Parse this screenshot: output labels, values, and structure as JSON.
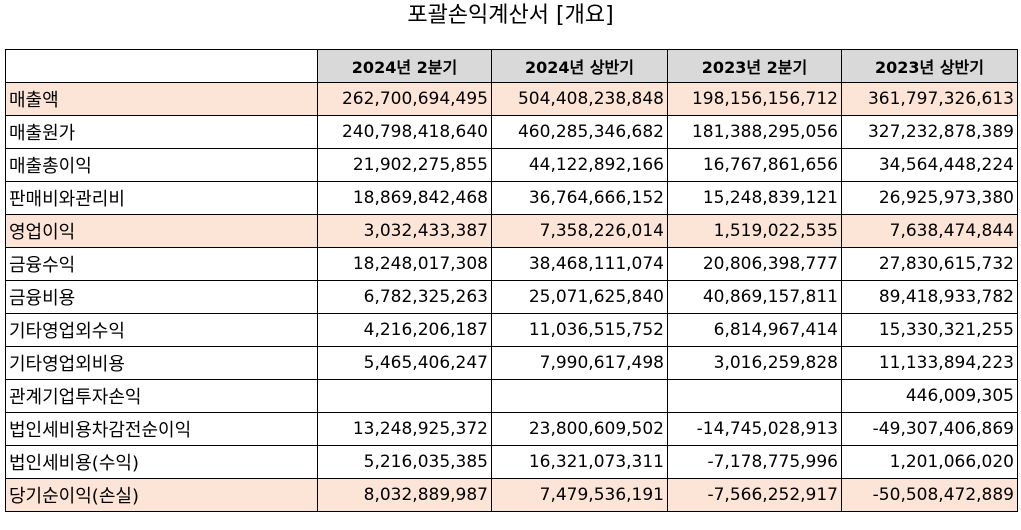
{
  "title": "포괄손익계산서 [개요]",
  "columns": [
    "2024년 2분기",
    "2024년 상반기",
    "2023년 2분기",
    "2023년 상반기"
  ],
  "colors": {
    "header_bg": "#d9d9d9",
    "highlight_bg": "#fce4d6"
  },
  "rows": [
    {
      "label": "매출액",
      "highlight": true,
      "values": [
        "262,700,694,495",
        "504,408,238,848",
        "198,156,156,712",
        "361,797,326,613"
      ]
    },
    {
      "label": "매출원가",
      "highlight": false,
      "values": [
        "240,798,418,640",
        "460,285,346,682",
        "181,388,295,056",
        "327,232,878,389"
      ]
    },
    {
      "label": "매출총이익",
      "highlight": false,
      "values": [
        "21,902,275,855",
        "44,122,892,166",
        "16,767,861,656",
        "34,564,448,224"
      ]
    },
    {
      "label": "판매비와관리비",
      "highlight": false,
      "values": [
        "18,869,842,468",
        "36,764,666,152",
        "15,248,839,121",
        "26,925,973,380"
      ]
    },
    {
      "label": "영업이익",
      "highlight": true,
      "values": [
        "3,032,433,387",
        "7,358,226,014",
        "1,519,022,535",
        "7,638,474,844"
      ]
    },
    {
      "label": "금융수익",
      "highlight": false,
      "values": [
        "18,248,017,308",
        "38,468,111,074",
        "20,806,398,777",
        "27,830,615,732"
      ]
    },
    {
      "label": "금융비용",
      "highlight": false,
      "values": [
        "6,782,325,263",
        "25,071,625,840",
        "40,869,157,811",
        "89,418,933,782"
      ]
    },
    {
      "label": "기타영업외수익",
      "highlight": false,
      "values": [
        "4,216,206,187",
        "11,036,515,752",
        "6,814,967,414",
        "15,330,321,255"
      ]
    },
    {
      "label": "기타영업외비용",
      "highlight": false,
      "values": [
        "5,465,406,247",
        "7,990,617,498",
        "3,016,259,828",
        "11,133,894,223"
      ]
    },
    {
      "label": "관계기업투자손익",
      "highlight": false,
      "values": [
        "",
        "",
        "",
        "446,009,305"
      ]
    },
    {
      "label": "법인세비용차감전순이익",
      "highlight": false,
      "values": [
        "13,248,925,372",
        "23,800,609,502",
        "-14,745,028,913",
        "-49,307,406,869"
      ]
    },
    {
      "label": "법인세비용(수익)",
      "highlight": false,
      "values": [
        "5,216,035,385",
        "16,321,073,311",
        "-7,178,775,996",
        "1,201,066,020"
      ]
    },
    {
      "label": "당기순이익(손실)",
      "highlight": true,
      "values": [
        "8,032,889,987",
        "7,479,536,191",
        "-7,566,252,917",
        "-50,508,472,889"
      ]
    }
  ]
}
